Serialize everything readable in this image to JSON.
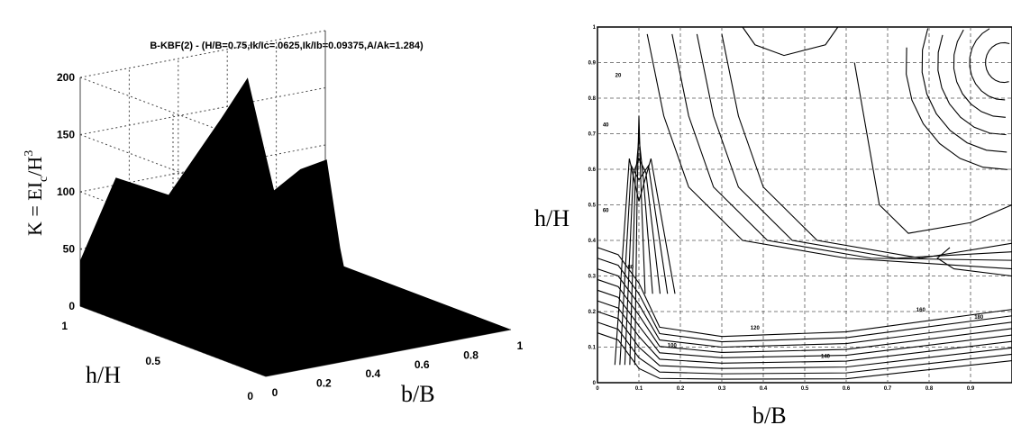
{
  "chart_data": [
    {
      "type": "surface3d",
      "title": "B-KBF(2) - (H/B=0.75,Ik/Ic=.0625,Ik/Ib=0.09375,A/Ak=1.284)",
      "zlabel_main": "K = EI",
      "zlabel_sub": "c",
      "zlabel_tail": "/H",
      "zlabel_sup": "3",
      "xlabel": "b/B",
      "ylabel": "h/H",
      "zlim": [
        0,
        200
      ],
      "z_ticks": [
        "0",
        "50",
        "100",
        "150",
        "200"
      ],
      "x_ticks": [
        "0",
        "0.2",
        "0.4",
        "0.6",
        "0.8",
        "1"
      ],
      "y_ticks": [
        "1",
        "0.5",
        "0"
      ],
      "grid": true,
      "top_edge": {
        "b": [
          0,
          0.1,
          0.3,
          0.5,
          0.6,
          0.7,
          0.8,
          0.9,
          1.0
        ],
        "k": [
          40,
          112,
          90,
          150,
          182,
          80,
          95,
          100,
          15
        ]
      }
    },
    {
      "type": "contour",
      "xlabel": "b/B",
      "ylabel": "h/H",
      "xlim": [
        0,
        1
      ],
      "ylim": [
        0,
        1
      ],
      "x_ticks": [
        "0",
        "0.1",
        "0.2",
        "0.3",
        "0.4",
        "0.5",
        "0.6",
        "0.7",
        "0.8",
        "0.9"
      ],
      "y_ticks": [
        "0",
        "0.1",
        "0.2",
        "0.3",
        "0.4",
        "0.5",
        "0.6",
        "0.7",
        "0.8",
        "0.9",
        "1"
      ],
      "grid": true,
      "contour_labels": [
        "20",
        "40",
        "60",
        "80",
        "100",
        "120",
        "140",
        "160",
        "180"
      ]
    }
  ]
}
